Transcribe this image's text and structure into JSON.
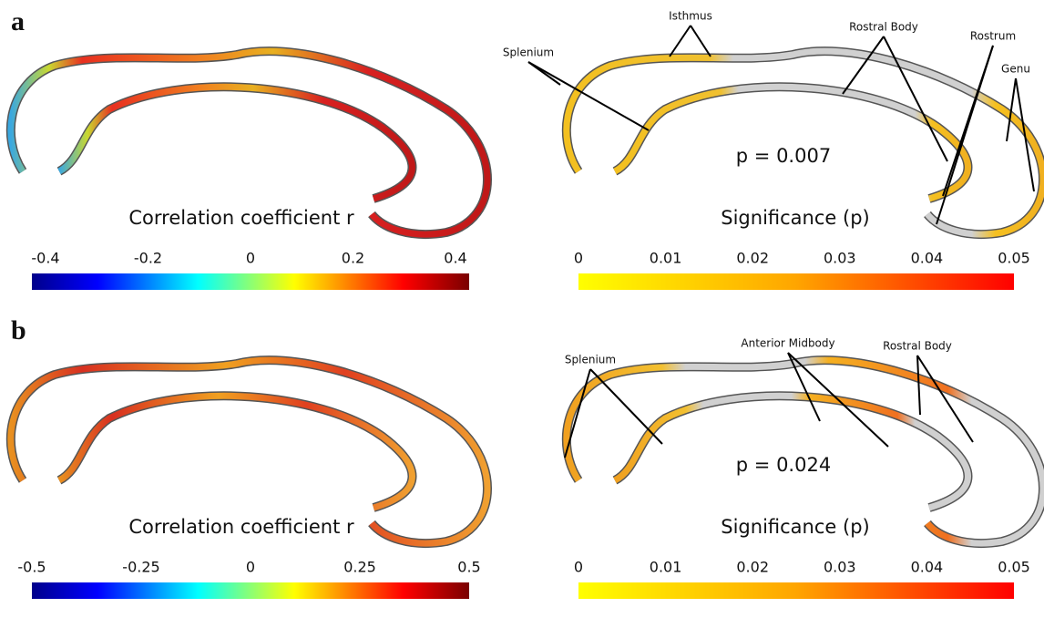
{
  "panels": [
    {
      "label": "a",
      "left": {
        "title": "Correlation coefficient r",
        "colorbar_ticks": [
          "-0.4",
          "-0.2",
          "0",
          "0.2",
          "0.4"
        ]
      },
      "right": {
        "title": "Significance (p)",
        "p_value": "p = 0.007",
        "colorbar_ticks": [
          "0",
          "0.01",
          "0.02",
          "0.03",
          "0.04",
          "0.05"
        ],
        "annotations": [
          "Isthmus",
          "Splenium",
          "Rostral Body",
          "Rostrum",
          "Genu"
        ]
      }
    },
    {
      "label": "b",
      "left": {
        "title": "Correlation coefficient r",
        "colorbar_ticks": [
          "-0.5",
          "-0.25",
          "0",
          "0.25",
          "0.5"
        ]
      },
      "right": {
        "title": "Significance (p)",
        "p_value": "p = 0.024",
        "colorbar_ticks": [
          "0",
          "0.01",
          "0.02",
          "0.03",
          "0.04",
          "0.05"
        ],
        "annotations": [
          "Splenium",
          "Anterior Midbody",
          "Rostral Body"
        ]
      }
    }
  ]
}
